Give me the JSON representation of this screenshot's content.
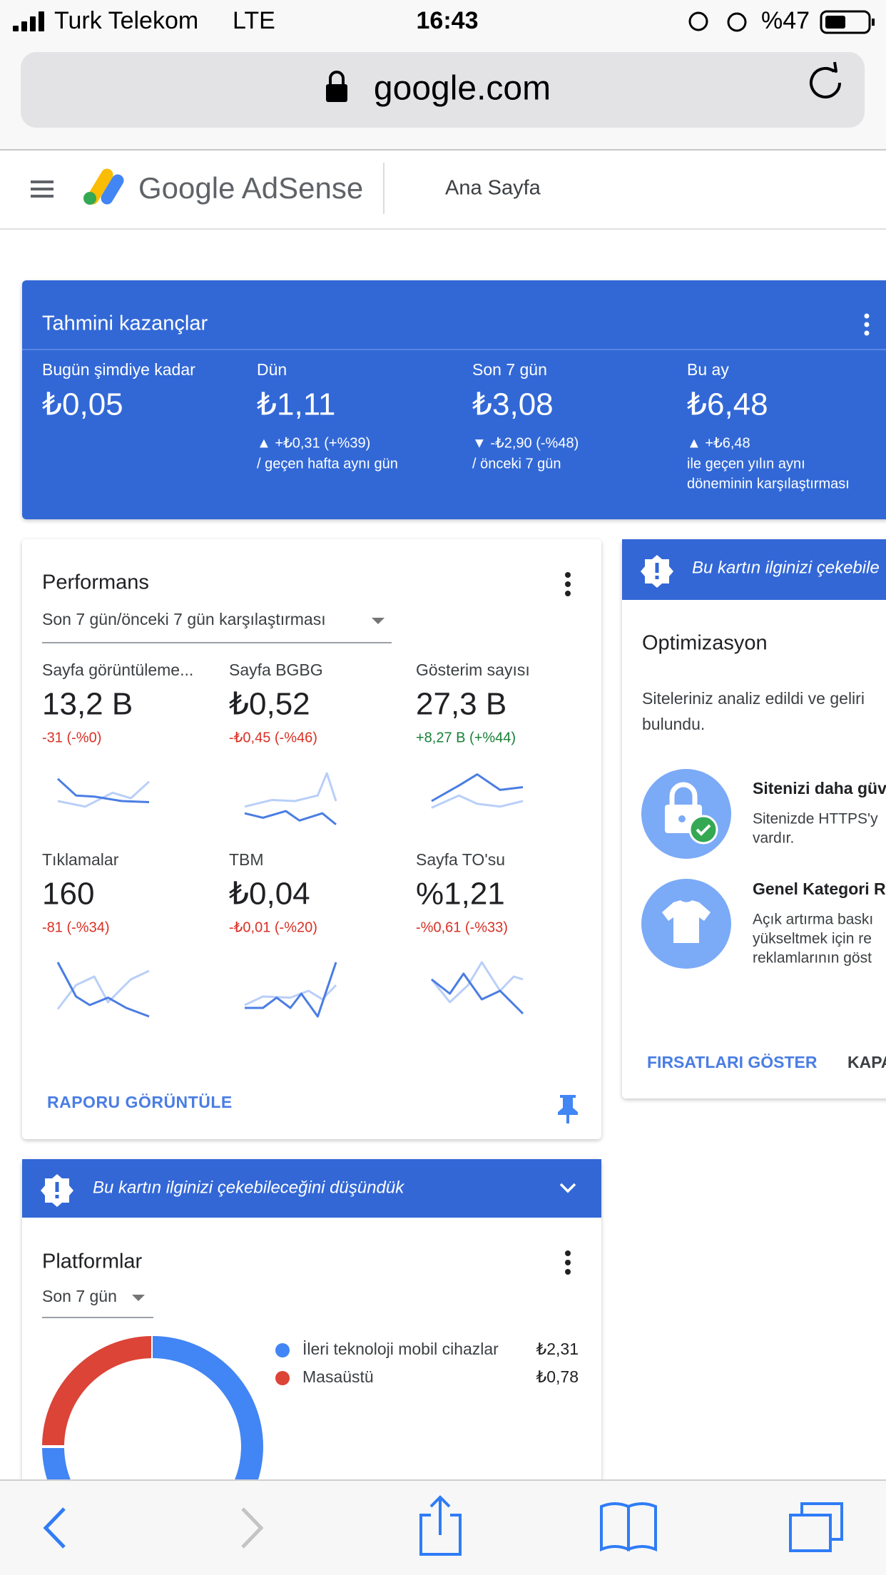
{
  "status_bar": {
    "carrier": "Turk Telekom",
    "network": "LTE",
    "time": "16:43",
    "battery": "%47"
  },
  "url_bar": {
    "domain": "google.com"
  },
  "header": {
    "brand": "Google AdSense",
    "page": "Ana Sayfa"
  },
  "earnings": {
    "title": "Tahmini kazançlar",
    "columns": [
      {
        "label": "Bugün şimdiye kadar",
        "value": "₺0,05"
      },
      {
        "label": "Dün",
        "value": "₺1,11",
        "change": "▲ +₺0,31 (+%39)",
        "note": [
          "/ geçen hafta aynı gün"
        ]
      },
      {
        "label": "Son 7 gün",
        "value": "₺3,08",
        "change": "▼ -₺2,90 (-%48)",
        "note": [
          "/ önceki 7 gün"
        ]
      },
      {
        "label": "Bu ay",
        "value": "₺6,48",
        "change": "▲ +₺6,48",
        "note": [
          "ile geçen yılın aynı",
          "döneminin karşılaştırması"
        ]
      }
    ]
  },
  "performance": {
    "title": "Performans",
    "period": "Son 7 gün/önceki 7 gün karşılaştırması",
    "metrics": [
      {
        "label": "Sayfa görüntüleme...",
        "value": "13,2 B",
        "change": "-31 (-%0)"
      },
      {
        "label": "Sayfa BGBG",
        "value": "₺0,52",
        "change": "-₺0,45 (-%46)"
      },
      {
        "label": "Gösterim sayısı",
        "value": "27,3 B",
        "change": "+8,27 B (+%44)"
      },
      {
        "label": "Tıklamalar",
        "value": "160",
        "change": "-81 (-%34)"
      },
      {
        "label": "TBM",
        "value": "₺0,04",
        "change": "-₺0,01 (-%20)"
      },
      {
        "label": "Sayfa TO'su",
        "value": "%1,21",
        "change": "-%0,61 (-%33)"
      }
    ],
    "report_button": "RAPORU GÖRÜNTÜLE"
  },
  "optimization": {
    "banner": "Bu kartın ilginizi çekebile",
    "title": "Optimizasyon",
    "description": [
      "Siteleriniz analiz edildi ve geliri",
      "bulundu."
    ],
    "items": [
      {
        "title": "Sitenizi daha güv",
        "lines": [
          "Sitenizde HTTPS'y",
          "vardır."
        ]
      },
      {
        "title": "Genel Kategori R",
        "lines": [
          "Açık artırma baskı",
          "yükseltmek için re",
          "reklamlarının göst"
        ]
      }
    ],
    "buttons": [
      "FIRSATLARI GÖSTER",
      "KAPA"
    ]
  },
  "platforms": {
    "banner": "Bu kartın ilginizi çekebileceğini düşündük",
    "title": "Platformlar",
    "period": "Son 7 gün",
    "legend": [
      {
        "name": "İleri teknoloji mobil cihazlar",
        "value": "₺2,31",
        "color": "#4285f4"
      },
      {
        "name": "Masaüstü",
        "value": "₺0,78",
        "color": "#db4437"
      }
    ]
  }
}
